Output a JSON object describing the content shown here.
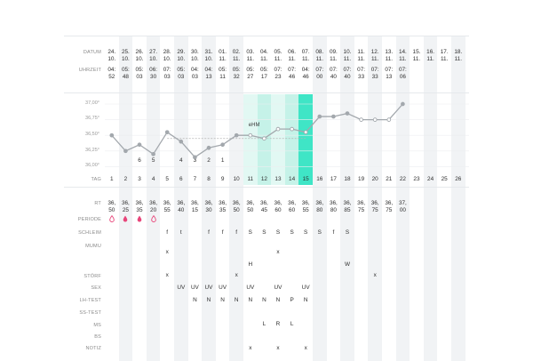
{
  "labels": {
    "datum": "DATUM",
    "uhrzeit": "UHRZEIT",
    "tag": "TAG",
    "rt": "RT",
    "periode": "PERIODE",
    "schleim": "SCHLEIM",
    "mumu": "MUMU",
    "stoerf": "STÖRF",
    "sex": "SEX",
    "lh_test": "LH-TEST",
    "ss_test": "SS-TEST",
    "ms": "MS",
    "bs": "BS",
    "notiz": "NOTIZ",
    "ehm": "eHM"
  },
  "y_ticks": [
    "37,00°",
    "36,75°",
    "36,50°",
    "36,25°",
    "36,00°"
  ],
  "colors": {
    "line": "#a3a8ad",
    "highlight": "#3fe5c6",
    "fertile_light": "#e2f8f3",
    "fertile_mid": "#c5f2e8",
    "stripe": "#f1f3f5",
    "period": "#e8457a",
    "coverline": "#b5b5b5"
  },
  "columns": [
    {
      "date_day": "24.",
      "date_month": "10.",
      "time_h": "04:",
      "time_m": "52",
      "tag": "1",
      "rt_a": "36,",
      "rt_b": "50",
      "period": "outline",
      "schleim": "",
      "mumu": "",
      "stoerf": "",
      "sex": "",
      "lh": "",
      "ss": "",
      "ms": "",
      "bs": "",
      "notiz": "",
      "below": ""
    },
    {
      "date_day": "25.",
      "date_month": "10.",
      "time_h": "05:",
      "time_m": "48",
      "tag": "2",
      "rt_a": "36,",
      "rt_b": "25",
      "period": "filled",
      "schleim": "",
      "mumu": "",
      "stoerf": "",
      "sex": "",
      "lh": "",
      "ss": "",
      "ms": "",
      "bs": "",
      "notiz": "",
      "below": ""
    },
    {
      "date_day": "26.",
      "date_month": "10.",
      "time_h": "05:",
      "time_m": "03",
      "tag": "3",
      "rt_a": "36,",
      "rt_b": "35",
      "period": "filled",
      "schleim": "",
      "mumu": "",
      "stoerf": "",
      "sex": "",
      "lh": "",
      "ss": "",
      "ms": "",
      "bs": "",
      "notiz": "",
      "below": "6"
    },
    {
      "date_day": "27.",
      "date_month": "10.",
      "time_h": "06:",
      "time_m": "30",
      "tag": "4",
      "rt_a": "36,",
      "rt_b": "20",
      "period": "outline",
      "schleim": "",
      "mumu": "",
      "stoerf": "",
      "sex": "",
      "lh": "",
      "ss": "",
      "ms": "",
      "bs": "",
      "notiz": "",
      "below": "5"
    },
    {
      "date_day": "28.",
      "date_month": "10.",
      "time_h": "07:",
      "time_m": "03",
      "tag": "5",
      "rt_a": "36,",
      "rt_b": "55",
      "period": "",
      "schleim": "f",
      "mumu": "x",
      "stoerf": "x",
      "sex": "",
      "lh": "",
      "ss": "",
      "ms": "",
      "bs": "",
      "notiz": "",
      "below": ""
    },
    {
      "date_day": "29.",
      "date_month": "10.",
      "time_h": "05:",
      "time_m": "03",
      "tag": "6",
      "rt_a": "36,",
      "rt_b": "40",
      "period": "",
      "schleim": "t",
      "mumu": "",
      "stoerf": "",
      "sex": "UV",
      "lh": "",
      "ss": "",
      "ms": "",
      "bs": "",
      "notiz": "",
      "below": "4"
    },
    {
      "date_day": "30.",
      "date_month": "10.",
      "time_h": "04:",
      "time_m": "03",
      "tag": "7",
      "rt_a": "36,",
      "rt_b": "15",
      "period": "",
      "schleim": "",
      "mumu": "",
      "stoerf": "",
      "sex": "UV",
      "lh": "N",
      "ss": "",
      "ms": "",
      "bs": "",
      "notiz": "",
      "below": "3"
    },
    {
      "date_day": "31.",
      "date_month": "10.",
      "time_h": "04:",
      "time_m": "13",
      "tag": "8",
      "rt_a": "36,",
      "rt_b": "30",
      "period": "",
      "schleim": "f",
      "mumu": "",
      "stoerf": "",
      "sex": "UV",
      "lh": "N",
      "ss": "",
      "ms": "",
      "bs": "",
      "notiz": "",
      "below": "2"
    },
    {
      "date_day": "01.",
      "date_month": "11.",
      "time_h": "05:",
      "time_m": "11",
      "tag": "9",
      "rt_a": "36,",
      "rt_b": "35",
      "period": "",
      "schleim": "f",
      "mumu": "",
      "stoerf": "",
      "sex": "UV",
      "lh": "N",
      "ss": "",
      "ms": "",
      "bs": "",
      "notiz": "",
      "below": "1"
    },
    {
      "date_day": "02.",
      "date_month": "11.",
      "time_h": "05:",
      "time_m": "32",
      "tag": "10",
      "rt_a": "36,",
      "rt_b": "50",
      "period": "",
      "schleim": "f",
      "mumu": "",
      "stoerf": "x",
      "sex": "",
      "lh": "N",
      "ss": "",
      "ms": "",
      "bs": "",
      "notiz": "",
      "below": ""
    },
    {
      "date_day": "03.",
      "date_month": "11.",
      "time_h": "05:",
      "time_m": "27",
      "tag": "11",
      "rt_a": "36,",
      "rt_b": "50",
      "period": "",
      "schleim": "S",
      "mumu": "H",
      "stoerf": "",
      "sex": "UV",
      "lh": "N",
      "ss": "",
      "ms": "",
      "bs": "",
      "notiz": "x",
      "below": ""
    },
    {
      "date_day": "04.",
      "date_month": "11.",
      "time_h": "05:",
      "time_m": "17",
      "tag": "12",
      "rt_a": "36,",
      "rt_b": "45",
      "period": "",
      "schleim": "S",
      "mumu": "",
      "stoerf": "",
      "sex": "",
      "lh": "N",
      "ss": "",
      "ms": "L",
      "bs": "",
      "notiz": "",
      "below": ""
    },
    {
      "date_day": "05.",
      "date_month": "11.",
      "time_h": "07:",
      "time_m": "23",
      "tag": "13",
      "rt_a": "36,",
      "rt_b": "60",
      "period": "",
      "schleim": "S",
      "mumu": "x",
      "stoerf": "",
      "sex": "UV",
      "lh": "N",
      "ss": "",
      "ms": "R",
      "bs": "",
      "notiz": "x",
      "below": ""
    },
    {
      "date_day": "06.",
      "date_month": "11.",
      "time_h": "07:",
      "time_m": "46",
      "tag": "14",
      "rt_a": "36,",
      "rt_b": "60",
      "period": "",
      "schleim": "S",
      "mumu": "",
      "stoerf": "",
      "sex": "",
      "lh": "P",
      "ss": "",
      "ms": "L",
      "bs": "",
      "notiz": "",
      "below": ""
    },
    {
      "date_day": "07.",
      "date_month": "11.",
      "time_h": "04:",
      "time_m": "46",
      "tag": "15",
      "rt_a": "36,",
      "rt_b": "55",
      "period": "",
      "schleim": "S",
      "mumu": "",
      "stoerf": "",
      "sex": "UV",
      "lh": "N",
      "ss": "",
      "ms": "",
      "bs": "",
      "notiz": "x",
      "below": ""
    },
    {
      "date_day": "08.",
      "date_month": "11.",
      "time_h": "07:",
      "time_m": "00",
      "tag": "16",
      "rt_a": "36,",
      "rt_b": "80",
      "period": "",
      "schleim": "S",
      "mumu": "",
      "stoerf": "",
      "sex": "",
      "lh": "",
      "ss": "",
      "ms": "",
      "bs": "",
      "notiz": "",
      "below": ""
    },
    {
      "date_day": "09.",
      "date_month": "11.",
      "time_h": "07:",
      "time_m": "40",
      "tag": "17",
      "rt_a": "36,",
      "rt_b": "80",
      "period": "",
      "schleim": "f",
      "mumu": "",
      "stoerf": "",
      "sex": "",
      "lh": "",
      "ss": "",
      "ms": "",
      "bs": "",
      "notiz": "",
      "below": ""
    },
    {
      "date_day": "10.",
      "date_month": "11.",
      "time_h": "07:",
      "time_m": "40",
      "tag": "18",
      "rt_a": "36,",
      "rt_b": "85",
      "period": "",
      "schleim": "S",
      "mumu": "W",
      "stoerf": "",
      "sex": "",
      "lh": "",
      "ss": "",
      "ms": "",
      "bs": "",
      "notiz": "",
      "below": ""
    },
    {
      "date_day": "11.",
      "date_month": "11.",
      "time_h": "07:",
      "time_m": "33",
      "tag": "19",
      "rt_a": "36,",
      "rt_b": "75",
      "period": "",
      "schleim": "",
      "mumu": "",
      "stoerf": "",
      "sex": "",
      "lh": "",
      "ss": "",
      "ms": "",
      "bs": "",
      "notiz": "",
      "below": ""
    },
    {
      "date_day": "12.",
      "date_month": "11.",
      "time_h": "07:",
      "time_m": "33",
      "tag": "20",
      "rt_a": "36,",
      "rt_b": "75",
      "period": "",
      "schleim": "",
      "mumu": "",
      "stoerf": "x",
      "sex": "",
      "lh": "",
      "ss": "",
      "ms": "",
      "bs": "",
      "notiz": "",
      "below": ""
    },
    {
      "date_day": "13.",
      "date_month": "11.",
      "time_h": "07:",
      "time_m": "13",
      "tag": "21",
      "rt_a": "36,",
      "rt_b": "75",
      "period": "",
      "schleim": "",
      "mumu": "",
      "stoerf": "",
      "sex": "",
      "lh": "",
      "ss": "",
      "ms": "",
      "bs": "",
      "notiz": "",
      "below": ""
    },
    {
      "date_day": "14.",
      "date_month": "11.",
      "time_h": "07:",
      "time_m": "06",
      "tag": "22",
      "rt_a": "37,",
      "rt_b": "00",
      "period": "",
      "schleim": "",
      "mumu": "",
      "stoerf": "",
      "sex": "",
      "lh": "",
      "ss": "",
      "ms": "",
      "bs": "",
      "notiz": "",
      "below": ""
    },
    {
      "date_day": "15.",
      "date_month": "11.",
      "time_h": "",
      "time_m": "",
      "tag": "23",
      "rt_a": "",
      "rt_b": "",
      "period": "",
      "schleim": "",
      "mumu": "",
      "stoerf": "",
      "sex": "",
      "lh": "",
      "ss": "",
      "ms": "",
      "bs": "",
      "notiz": "",
      "below": ""
    },
    {
      "date_day": "16.",
      "date_month": "11.",
      "time_h": "",
      "time_m": "",
      "tag": "24",
      "rt_a": "",
      "rt_b": "",
      "period": "",
      "schleim": "",
      "mumu": "",
      "stoerf": "",
      "sex": "",
      "lh": "",
      "ss": "",
      "ms": "",
      "bs": "",
      "notiz": "",
      "below": ""
    },
    {
      "date_day": "17.",
      "date_month": "11.",
      "time_h": "",
      "time_m": "",
      "tag": "25",
      "rt_a": "",
      "rt_b": "",
      "period": "",
      "schleim": "",
      "mumu": "",
      "stoerf": "",
      "sex": "",
      "lh": "",
      "ss": "",
      "ms": "",
      "bs": "",
      "notiz": "",
      "below": ""
    },
    {
      "date_day": "18.",
      "date_month": "11.",
      "time_h": "",
      "time_m": "",
      "tag": "26",
      "rt_a": "",
      "rt_b": "",
      "period": "",
      "schleim": "",
      "mumu": "",
      "stoerf": "",
      "sex": "",
      "lh": "",
      "ss": "",
      "ms": "",
      "bs": "",
      "notiz": "",
      "below": ""
    }
  ],
  "chart_data": {
    "type": "line",
    "title": "",
    "xlabel": "TAG",
    "ylabel": "",
    "ylim": [
      36.0,
      37.0
    ],
    "x": [
      1,
      2,
      3,
      4,
      5,
      6,
      7,
      8,
      9,
      10,
      11,
      12,
      13,
      14,
      15,
      16,
      17,
      18,
      19,
      20,
      21,
      22
    ],
    "series": [
      {
        "values": [
          36.5,
          36.25,
          36.35,
          36.2,
          36.55,
          36.4,
          36.15,
          36.3,
          36.35,
          36.5,
          36.5,
          36.45,
          36.6,
          36.6,
          36.55,
          36.8,
          36.8,
          36.85,
          36.75,
          36.75,
          36.75,
          37.0
        ]
      }
    ],
    "coverline": 36.45,
    "coverline_days": [
      5,
      15
    ],
    "fertile_window_days": [
      11,
      15
    ],
    "highlight_day": 15,
    "ehm_day": 11,
    "low_days_numbered": {
      "3": "6",
      "4": "5",
      "6": "4",
      "7": "3",
      "8": "2",
      "9": "1"
    },
    "grid": true
  }
}
